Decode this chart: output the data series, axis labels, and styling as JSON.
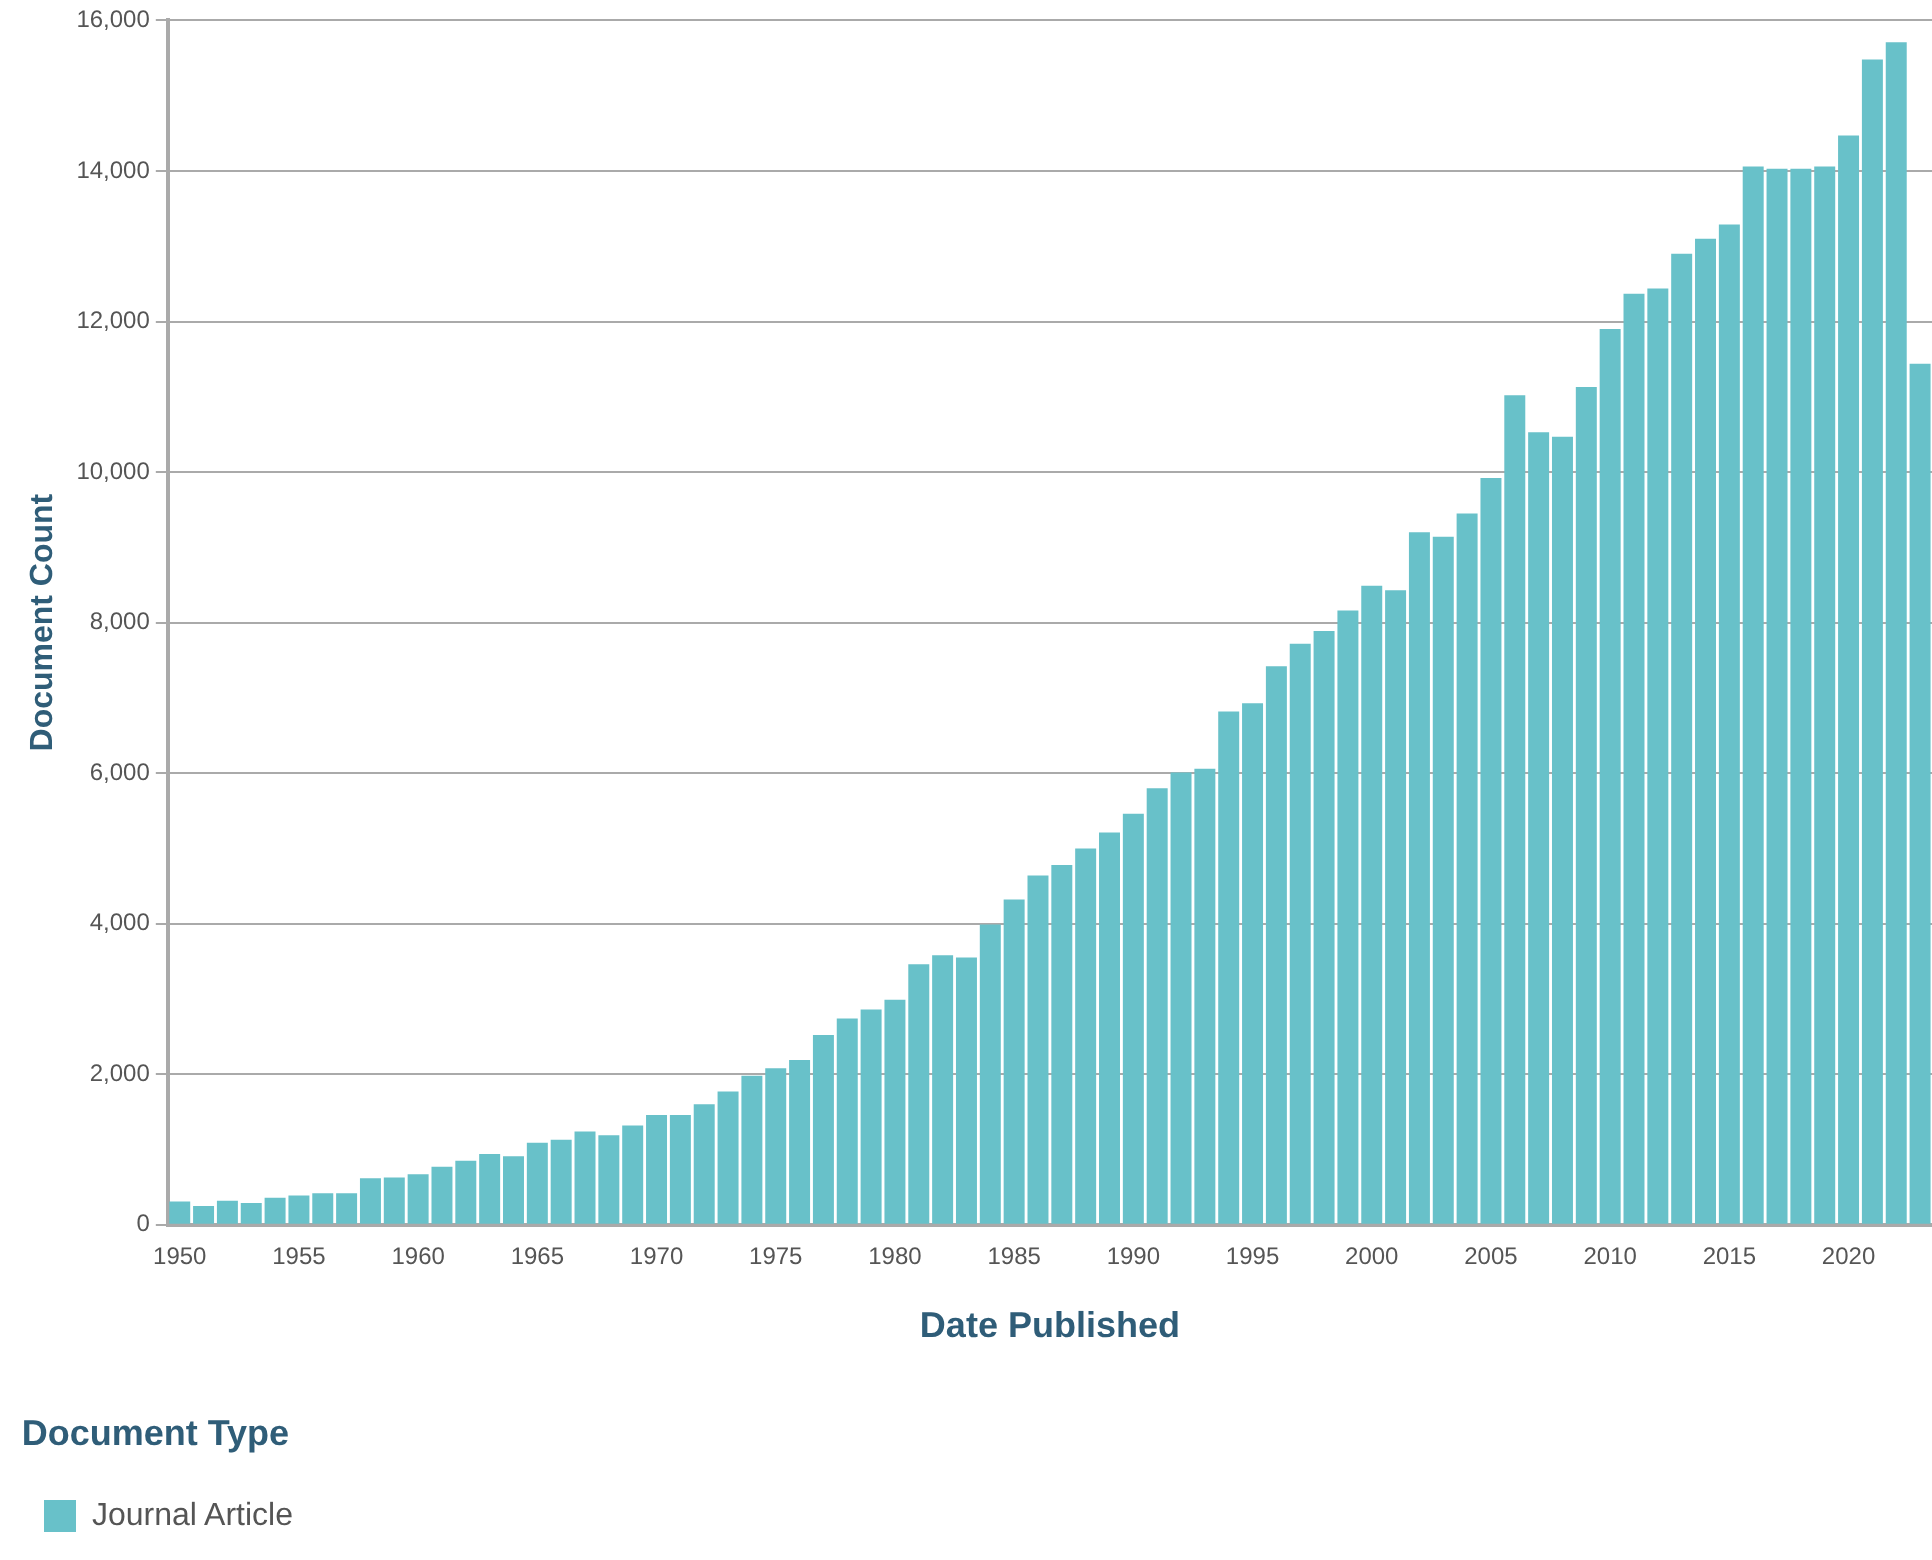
{
  "chart_data": {
    "type": "bar",
    "xlabel": "Date Published",
    "ylabel": "Document Count",
    "legend_title": "Document Type",
    "legend": "bottom left",
    "grid": "y",
    "categories": [
      "1950",
      null,
      null,
      null,
      null,
      "1955",
      null,
      null,
      null,
      null,
      "1960",
      null,
      null,
      null,
      null,
      "1965",
      null,
      null,
      null,
      null,
      "1970",
      null,
      null,
      null,
      null,
      "1975",
      null,
      null,
      null,
      null,
      "1980",
      null,
      null,
      null,
      null,
      "1985",
      null,
      null,
      null,
      null,
      "1990",
      null,
      null,
      null,
      null,
      "1995",
      null,
      null,
      null,
      null,
      "2000",
      null,
      null,
      null,
      null,
      "2005",
      null,
      null,
      null,
      null,
      "2010",
      null,
      null,
      null,
      null,
      "2015",
      null,
      null,
      null,
      null,
      "2020",
      null,
      null,
      null
    ],
    "series": [
      {
        "name": "Journal Article",
        "color": "#68c1c9",
        "values": [
          310,
          250,
          320,
          290,
          360,
          390,
          420,
          420,
          620,
          630,
          670,
          770,
          850,
          940,
          910,
          1090,
          1130,
          1240,
          1190,
          1320,
          1460,
          1460,
          1600,
          1770,
          1980,
          2080,
          2190,
          2520,
          2740,
          2860,
          2990,
          3460,
          3580,
          3550,
          3990,
          4320,
          4640,
          4780,
          5000,
          5210,
          5460,
          5800,
          6010,
          6060,
          6820,
          6930,
          7420,
          7720,
          7890,
          8160,
          8490,
          8430,
          9200,
          9140,
          9450,
          9920,
          11020,
          10530,
          10470,
          11130,
          11900,
          12370,
          12440,
          12900,
          13100,
          13290,
          14060,
          14030,
          14030,
          14060,
          14470,
          15480,
          15710,
          11440
        ]
      }
    ],
    "ylim": [
      0,
      16000
    ],
    "yticks": [
      {
        "value": 0,
        "label": "0"
      },
      {
        "value": 2000,
        "label": "2,000"
      },
      {
        "value": 4000,
        "label": "4,000"
      },
      {
        "value": 6000,
        "label": "6,000"
      },
      {
        "value": 8000,
        "label": "8,000"
      },
      {
        "value": 10000,
        "label": "10,000"
      },
      {
        "value": 12000,
        "label": "12,000"
      },
      {
        "value": 14000,
        "label": "14,000"
      },
      {
        "value": 16000,
        "label": "16,000"
      }
    ]
  }
}
